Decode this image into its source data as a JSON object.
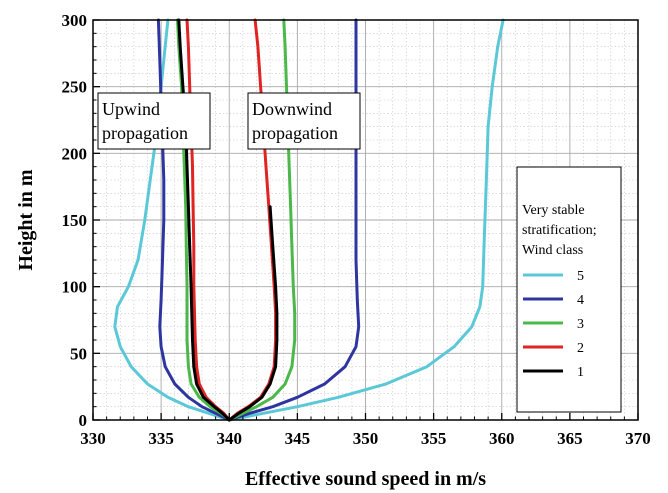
{
  "chart_data": {
    "type": "line",
    "xlabel": "Effective sound speed in m/s",
    "ylabel": "Height in m",
    "xlim": [
      330,
      370
    ],
    "ylim": [
      0,
      300
    ],
    "xticks": [
      330,
      335,
      340,
      345,
      350,
      355,
      360,
      365,
      370
    ],
    "yticks": [
      0,
      50,
      100,
      150,
      200,
      250,
      300
    ],
    "grid": true,
    "grid_minor": true,
    "legend": {
      "placement": "right",
      "title_lines": [
        "Very stable",
        "stratification;",
        "Wind class"
      ]
    },
    "annotations": [
      {
        "lines": [
          "Upwind",
          "propagation"
        ]
      },
      {
        "lines": [
          "Downwind",
          "propagation"
        ]
      }
    ],
    "series": [
      {
        "name": "5",
        "color": "#5bc8d8",
        "points": [
          [
            340,
            0
          ],
          [
            338.5,
            5
          ],
          [
            337,
            10
          ],
          [
            335.5,
            17
          ],
          [
            334,
            27
          ],
          [
            332.8,
            40
          ],
          [
            332.0,
            55
          ],
          [
            331.6,
            70
          ],
          [
            331.8,
            85
          ],
          [
            332.6,
            100
          ],
          [
            333.3,
            120
          ],
          [
            333.8,
            150
          ],
          [
            334.2,
            180
          ],
          [
            334.6,
            210
          ],
          [
            334.9,
            240
          ],
          [
            335.2,
            270
          ],
          [
            335.5,
            300
          ]
        ]
      },
      {
        "name": "4",
        "color": "#2e35a0",
        "points": [
          [
            340,
            0
          ],
          [
            339.0,
            5
          ],
          [
            338.0,
            10
          ],
          [
            337.0,
            17
          ],
          [
            336.0,
            27
          ],
          [
            335.3,
            40
          ],
          [
            335.0,
            55
          ],
          [
            334.9,
            70
          ],
          [
            335.0,
            90
          ],
          [
            335.1,
            120
          ],
          [
            335.2,
            150
          ],
          [
            335.2,
            180
          ],
          [
            335.1,
            210
          ],
          [
            335.0,
            240
          ],
          [
            334.9,
            270
          ],
          [
            334.8,
            300
          ]
        ]
      },
      {
        "name": "3",
        "color": "#4cb849",
        "points": [
          [
            340,
            0
          ],
          [
            339.4,
            5
          ],
          [
            338.6,
            10
          ],
          [
            337.8,
            17
          ],
          [
            337.2,
            27
          ],
          [
            337.0,
            40
          ],
          [
            336.9,
            60
          ],
          [
            336.9,
            80
          ],
          [
            336.9,
            100
          ],
          [
            336.85,
            130
          ],
          [
            336.8,
            160
          ],
          [
            336.7,
            190
          ],
          [
            336.6,
            220
          ],
          [
            336.5,
            250
          ],
          [
            336.3,
            280
          ],
          [
            336.2,
            300
          ]
        ]
      },
      {
        "name": "2",
        "color": "#e02323",
        "points": [
          [
            340,
            0
          ],
          [
            339.6,
            5
          ],
          [
            339.0,
            10
          ],
          [
            338.3,
            17
          ],
          [
            337.8,
            27
          ],
          [
            337.6,
            40
          ],
          [
            337.5,
            60
          ],
          [
            337.45,
            80
          ],
          [
            337.4,
            100
          ],
          [
            337.4,
            130
          ],
          [
            337.35,
            160
          ],
          [
            337.3,
            190
          ],
          [
            337.2,
            220
          ],
          [
            337.1,
            250
          ],
          [
            337.0,
            280
          ],
          [
            336.9,
            300
          ]
        ]
      },
      {
        "name": "1",
        "color": "#000000",
        "points": [
          [
            340,
            0
          ],
          [
            339.5,
            5
          ],
          [
            338.9,
            10
          ],
          [
            338.1,
            17
          ],
          [
            337.6,
            27
          ],
          [
            337.4,
            40
          ],
          [
            337.3,
            60
          ],
          [
            337.25,
            80
          ],
          [
            337.2,
            100
          ],
          [
            337.1,
            130
          ],
          [
            337.0,
            160
          ],
          [
            336.9,
            190
          ],
          [
            336.8,
            220
          ],
          [
            336.6,
            250
          ],
          [
            336.4,
            280
          ],
          [
            336.3,
            300
          ]
        ]
      },
      {
        "name": "",
        "color": "#5bc8d8",
        "points": [
          [
            340,
            0
          ],
          [
            342.5,
            5
          ],
          [
            345.0,
            10
          ],
          [
            348.0,
            17
          ],
          [
            351.5,
            27
          ],
          [
            354.5,
            40
          ],
          [
            356.5,
            55
          ],
          [
            357.8,
            70
          ],
          [
            358.4,
            85
          ],
          [
            358.6,
            100
          ],
          [
            358.7,
            130
          ],
          [
            358.8,
            160
          ],
          [
            358.9,
            190
          ],
          [
            359.0,
            220
          ],
          [
            359.3,
            250
          ],
          [
            359.7,
            280
          ],
          [
            360.1,
            300
          ]
        ]
      },
      {
        "name": "",
        "color": "#2e35a0",
        "points": [
          [
            340,
            0
          ],
          [
            341.5,
            5
          ],
          [
            343.2,
            10
          ],
          [
            345.0,
            17
          ],
          [
            347.0,
            27
          ],
          [
            348.5,
            40
          ],
          [
            349.3,
            55
          ],
          [
            349.5,
            70
          ],
          [
            349.4,
            90
          ],
          [
            349.3,
            120
          ],
          [
            349.3,
            150
          ],
          [
            349.3,
            180
          ],
          [
            349.3,
            210
          ],
          [
            349.3,
            240
          ],
          [
            349.3,
            270
          ],
          [
            349.3,
            300
          ]
        ]
      },
      {
        "name": "",
        "color": "#4cb849",
        "points": [
          [
            340,
            0
          ],
          [
            341.0,
            5
          ],
          [
            342.0,
            10
          ],
          [
            343.2,
            17
          ],
          [
            344.1,
            27
          ],
          [
            344.6,
            40
          ],
          [
            344.8,
            60
          ],
          [
            344.8,
            80
          ],
          [
            344.7,
            100
          ],
          [
            344.6,
            130
          ],
          [
            344.5,
            160
          ],
          [
            344.4,
            190
          ],
          [
            344.3,
            220
          ],
          [
            344.2,
            250
          ],
          [
            344.1,
            280
          ],
          [
            344.0,
            300
          ]
        ]
      },
      {
        "name": "",
        "color": "#e02323",
        "points": [
          [
            340,
            0
          ],
          [
            340.6,
            5
          ],
          [
            341.4,
            10
          ],
          [
            342.3,
            17
          ],
          [
            342.9,
            27
          ],
          [
            343.3,
            40
          ],
          [
            343.4,
            60
          ],
          [
            343.4,
            80
          ],
          [
            343.3,
            100
          ],
          [
            343.1,
            130
          ],
          [
            342.9,
            160
          ],
          [
            342.7,
            190
          ],
          [
            342.5,
            220
          ],
          [
            342.3,
            250
          ],
          [
            342.1,
            280
          ],
          [
            341.9,
            300
          ]
        ]
      },
      {
        "name": "",
        "color": "#000000",
        "points": [
          [
            340,
            0
          ],
          [
            340.7,
            5
          ],
          [
            341.5,
            10
          ],
          [
            342.4,
            17
          ],
          [
            343.0,
            27
          ],
          [
            343.4,
            40
          ],
          [
            343.5,
            60
          ],
          [
            343.5,
            80
          ],
          [
            343.4,
            100
          ],
          [
            343.2,
            130
          ],
          [
            343.0,
            160
          ]
        ]
      }
    ]
  }
}
